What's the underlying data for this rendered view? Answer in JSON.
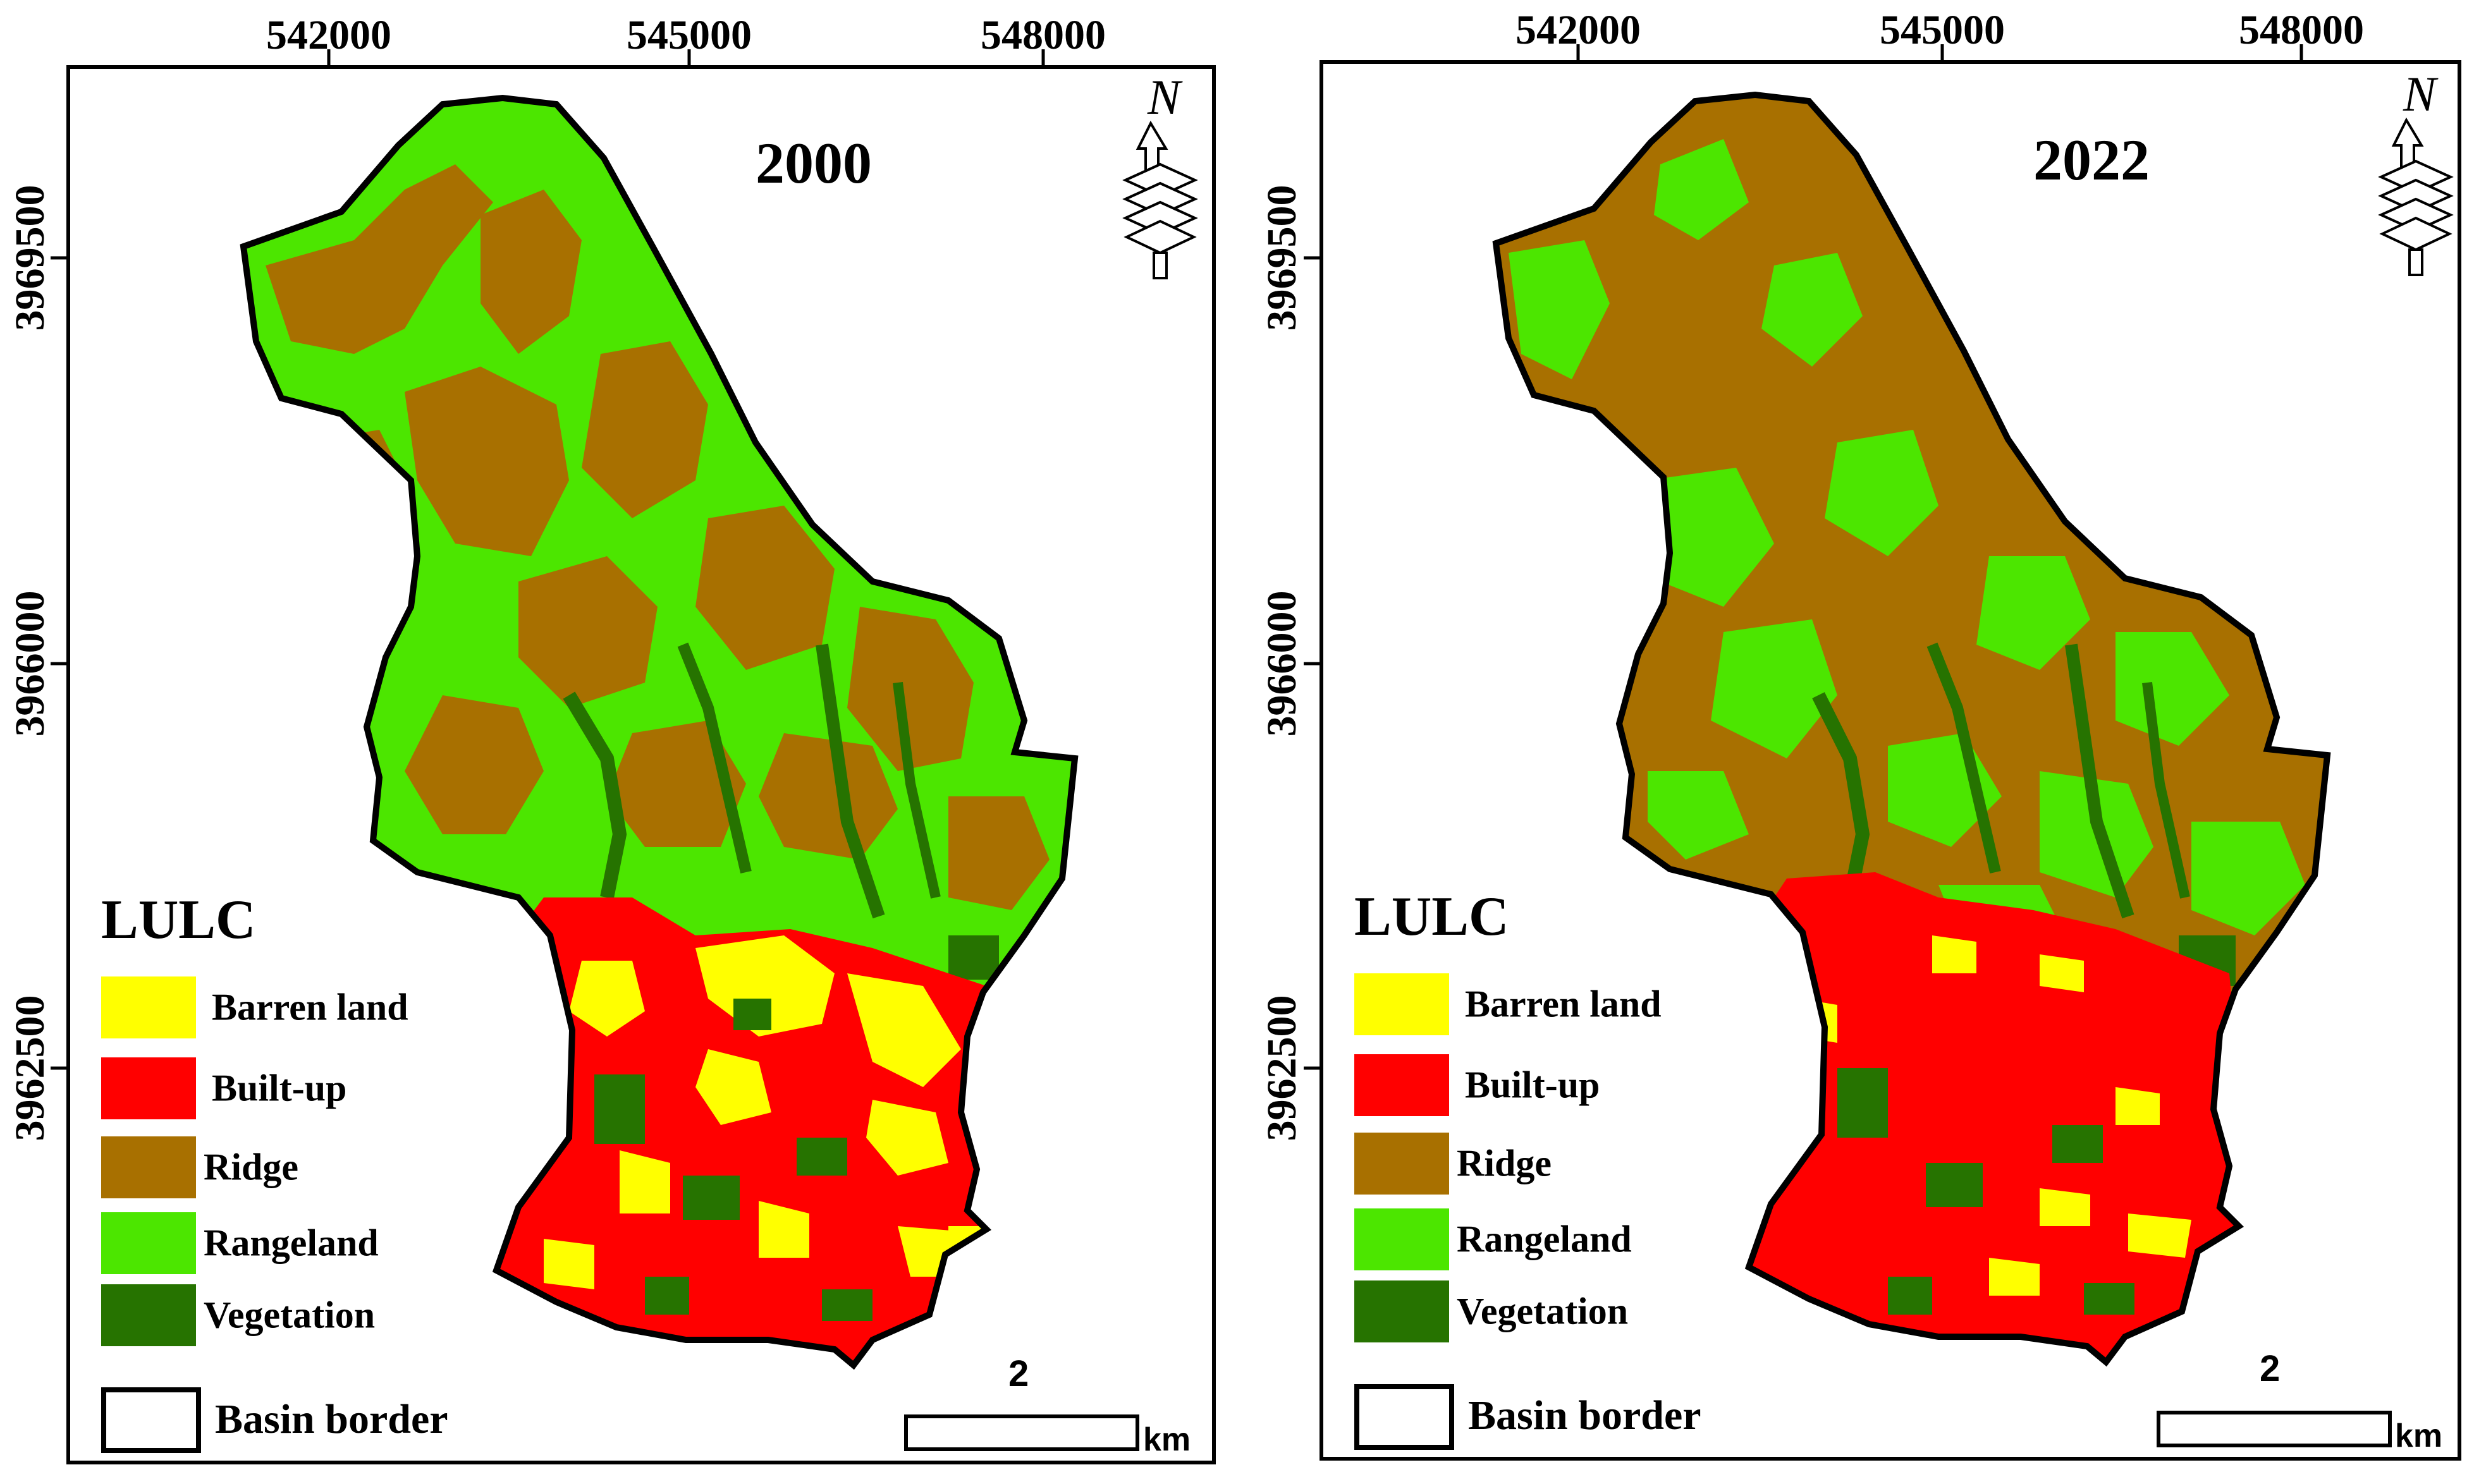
{
  "x_ticks": [
    "542000",
    "545000",
    "548000"
  ],
  "y_ticks": [
    "3969500",
    "3966000",
    "3962500"
  ],
  "legend": {
    "title": "LULC",
    "items": [
      {
        "label": "Barren land",
        "color": "#FFFF00"
      },
      {
        "label": "Built-up",
        "color": "#FF0000"
      },
      {
        "label": "Ridge",
        "color": "#A87000"
      },
      {
        "label": "Rangeland",
        "color": "#4CE600"
      },
      {
        "label": "Vegetation",
        "color": "#267300"
      }
    ],
    "border_label": "Basin border"
  },
  "scale": {
    "value": "2",
    "unit": "km"
  },
  "north_label": "N",
  "panels": [
    {
      "year": "2000",
      "dominant_north": "Rangeland"
    },
    {
      "year": "2022",
      "dominant_north": "Ridge"
    }
  ],
  "colors": {
    "barren": "#FFFF00",
    "builtup": "#FF0000",
    "ridge": "#A87000",
    "rangeland": "#4CE600",
    "vegetation": "#267300"
  }
}
